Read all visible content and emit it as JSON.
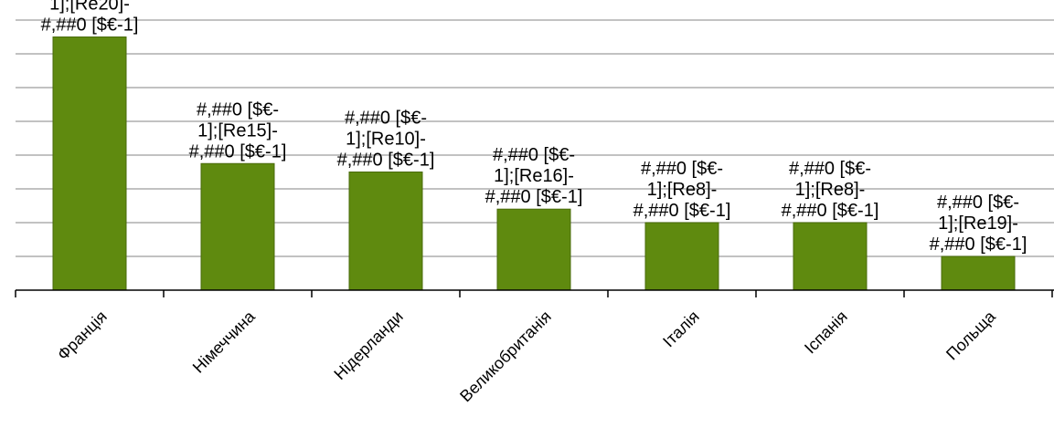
{
  "chart_data": {
    "type": "bar",
    "title": "",
    "xlabel": "",
    "ylabel": "",
    "categories": [
      "Франція",
      "Німеччина",
      "Нідерланди",
      "Великобританія",
      "Італія",
      "Іспанія",
      "Польща"
    ],
    "values": [
      7.5,
      3.75,
      3.5,
      2.4,
      2.0,
      2.0,
      1.0
    ],
    "ylim": [
      0,
      8.5
    ],
    "grid": true,
    "legend": "none",
    "colors": {
      "bar": "#5F8A0F",
      "bar_stroke": "#4A6B0B",
      "grid": "#9E9E9E",
      "axis": "#000000"
    },
    "data_labels": [
      [
        "1];[Re20]-",
        "#,##0 [$€-1]"
      ],
      [
        "#,##0 [$€-",
        "1];[Re15]-",
        "#,##0 [$€-1]"
      ],
      [
        "#,##0 [$€-",
        "1];[Re10]-",
        "#,##0 [$€-1]"
      ],
      [
        "#,##0 [$€-",
        "1];[Re16]-",
        "#,##0 [$€-1]"
      ],
      [
        "#,##0 [$€-",
        "1];[Re8]-",
        "#,##0 [$€-1]"
      ],
      [
        "#,##0 [$€-",
        "1];[Re8]-",
        "#,##0 [$€-1]"
      ],
      [
        "#,##0 [$€-",
        "1];[Re19]-",
        "#,##0 [$€-1]"
      ]
    ]
  }
}
